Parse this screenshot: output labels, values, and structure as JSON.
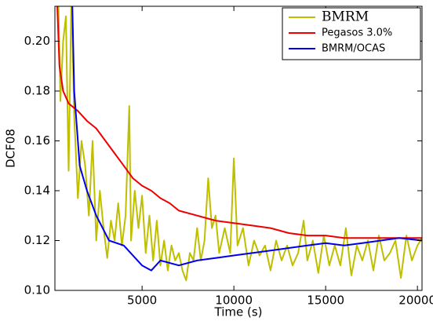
{
  "chart_data": {
    "type": "line",
    "x_label": "Time (s)",
    "y_label": "DCF08",
    "xlim": [
      250,
      20250
    ],
    "ylim": [
      0.1,
      0.214
    ],
    "xticks": [
      5000,
      10000,
      15000,
      20000
    ],
    "yticks": [
      {
        "value": 0.1,
        "label": "0.10"
      },
      {
        "value": 0.12,
        "label": "0.12"
      },
      {
        "value": 0.14,
        "label": "0.14"
      },
      {
        "value": 0.16,
        "label": "0.16"
      },
      {
        "value": 0.18,
        "label": "0.18"
      },
      {
        "value": 0.2,
        "label": "0.20"
      }
    ],
    "legend": "upper right",
    "series": [
      {
        "name": "BMRM",
        "color": "#bfbf00",
        "x": [
          400,
          550,
          700,
          850,
          1000,
          1150,
          1300,
          1500,
          1700,
          1900,
          2100,
          2300,
          2500,
          2700,
          2900,
          3100,
          3300,
          3500,
          3700,
          3900,
          4100,
          4300,
          4400,
          4600,
          4800,
          5000,
          5200,
          5400,
          5600,
          5800,
          6000,
          6200,
          6400,
          6600,
          6800,
          7000,
          7200,
          7400,
          7600,
          7800,
          8000,
          8200,
          8400,
          8600,
          8800,
          9000,
          9200,
          9500,
          9800,
          10000,
          10200,
          10500,
          10800,
          11100,
          11400,
          11700,
          12000,
          12300,
          12600,
          12900,
          13200,
          13500,
          13800,
          14000,
          14300,
          14600,
          14900,
          15200,
          15500,
          15800,
          16100,
          16400,
          16700,
          17000,
          17300,
          17600,
          17900,
          18200,
          18500,
          18800,
          19100,
          19400,
          19700,
          20000,
          20250
        ],
        "values": [
          0.23,
          0.176,
          0.2,
          0.21,
          0.148,
          0.22,
          0.17,
          0.137,
          0.16,
          0.15,
          0.13,
          0.16,
          0.12,
          0.14,
          0.125,
          0.113,
          0.128,
          0.12,
          0.135,
          0.118,
          0.13,
          0.174,
          0.12,
          0.14,
          0.125,
          0.138,
          0.115,
          0.13,
          0.112,
          0.128,
          0.11,
          0.12,
          0.108,
          0.118,
          0.112,
          0.115,
          0.108,
          0.104,
          0.115,
          0.112,
          0.125,
          0.112,
          0.12,
          0.145,
          0.125,
          0.13,
          0.115,
          0.125,
          0.115,
          0.153,
          0.118,
          0.125,
          0.11,
          0.12,
          0.114,
          0.118,
          0.108,
          0.12,
          0.112,
          0.118,
          0.11,
          0.115,
          0.128,
          0.112,
          0.12,
          0.107,
          0.122,
          0.11,
          0.118,
          0.11,
          0.125,
          0.106,
          0.118,
          0.112,
          0.12,
          0.108,
          0.122,
          0.112,
          0.115,
          0.12,
          0.105,
          0.122,
          0.112,
          0.118,
          0.121
        ]
      },
      {
        "name": "Pegasos 3.0%",
        "color": "#ee0000",
        "x": [
          300,
          500,
          700,
          1000,
          1500,
          2000,
          2500,
          3000,
          3500,
          4000,
          4500,
          5000,
          5500,
          6000,
          6500,
          7000,
          8000,
          9000,
          10000,
          11000,
          12000,
          13000,
          14000,
          15000,
          16000,
          17000,
          18000,
          19000,
          20250
        ],
        "values": [
          0.23,
          0.19,
          0.18,
          0.175,
          0.172,
          0.168,
          0.165,
          0.16,
          0.155,
          0.15,
          0.145,
          0.142,
          0.14,
          0.137,
          0.135,
          0.132,
          0.13,
          0.128,
          0.127,
          0.126,
          0.125,
          0.123,
          0.122,
          0.122,
          0.121,
          0.121,
          0.121,
          0.121,
          0.121
        ]
      },
      {
        "name": "BMRM/OCAS",
        "color": "#0000ee",
        "x": [
          1150,
          1300,
          1600,
          2000,
          2500,
          3200,
          4000,
          5000,
          5500,
          6000,
          7000,
          8000,
          9000,
          10000,
          11000,
          12000,
          13000,
          14000,
          15000,
          16000,
          17000,
          18000,
          19000,
          20250
        ],
        "values": [
          0.23,
          0.18,
          0.15,
          0.14,
          0.13,
          0.12,
          0.118,
          0.11,
          0.108,
          0.112,
          0.11,
          0.112,
          0.113,
          0.114,
          0.115,
          0.116,
          0.117,
          0.118,
          0.119,
          0.118,
          0.119,
          0.12,
          0.121,
          0.12
        ]
      }
    ]
  }
}
